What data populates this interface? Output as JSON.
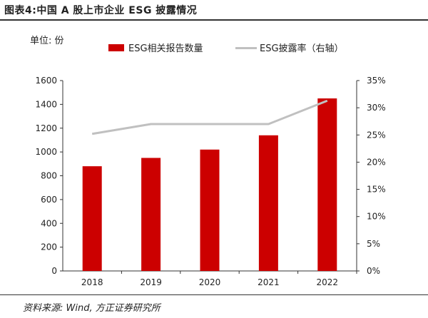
{
  "figure_title": "图表4:中国 A 股上市企业 ESG 披露情况",
  "unit_label": "单位: 份",
  "source": "资料来源: Wind, 方正证券研究所",
  "colors": {
    "bar": "#cc0000",
    "line": "#c0c0c0",
    "axis": "#333333"
  },
  "chart_data": {
    "type": "bar",
    "categories": [
      "2018",
      "2019",
      "2020",
      "2021",
      "2022"
    ],
    "series": [
      {
        "name": "ESG相关报告数量",
        "type": "bar",
        "axis": "left",
        "values": [
          880,
          950,
          1020,
          1140,
          1450
        ]
      },
      {
        "name": "ESG披露率（右轴）",
        "type": "line",
        "axis": "right",
        "values": [
          25.2,
          27.0,
          27.0,
          27.0,
          31.3
        ]
      }
    ],
    "y_left": {
      "min": 0,
      "max": 1600,
      "ticks": [
        0,
        200,
        400,
        600,
        800,
        1000,
        1200,
        1400,
        1600
      ]
    },
    "y_right": {
      "min": 0,
      "max": 35,
      "ticks": [
        "0%",
        "5%",
        "10%",
        "15%",
        "20%",
        "25%",
        "30%",
        "35%"
      ]
    },
    "legend_position": "top",
    "grid": false
  }
}
